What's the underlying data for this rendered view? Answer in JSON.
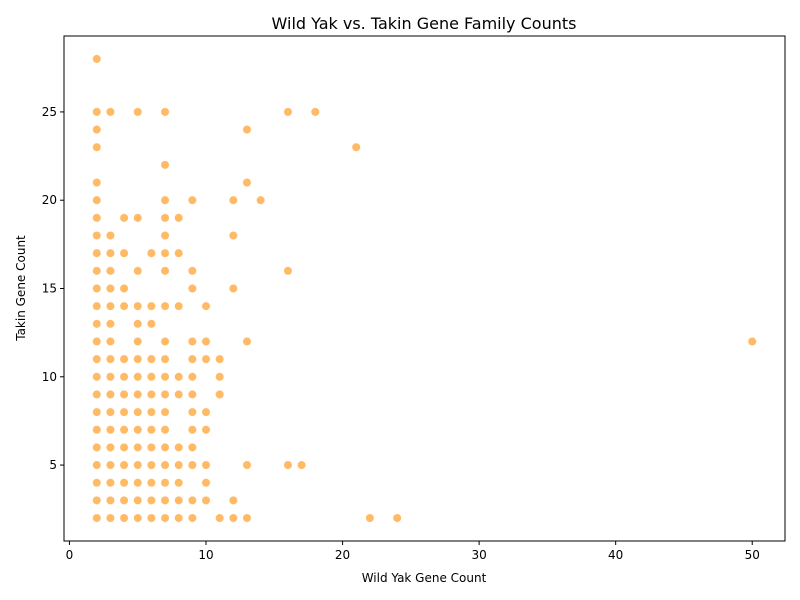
{
  "chart_data": {
    "type": "scatter",
    "title": "Wild Yak vs. Takin Gene Family Counts",
    "xlabel": "Wild Yak Gene Count",
    "ylabel": "Takin Gene Count",
    "xlim": [
      -0.4,
      52.4
    ],
    "ylim": [
      0.7,
      29.3
    ],
    "xticks": [
      0,
      10,
      20,
      30,
      40,
      50
    ],
    "yticks": [
      5,
      10,
      15,
      20,
      25
    ],
    "grid": false,
    "legend": "none",
    "point_color": "#ff8c00",
    "points": [
      [
        2,
        2
      ],
      [
        2,
        3
      ],
      [
        2,
        4
      ],
      [
        2,
        5
      ],
      [
        2,
        6
      ],
      [
        2,
        7
      ],
      [
        2,
        8
      ],
      [
        2,
        9
      ],
      [
        2,
        10
      ],
      [
        2,
        11
      ],
      [
        2,
        12
      ],
      [
        2,
        13
      ],
      [
        2,
        14
      ],
      [
        2,
        15
      ],
      [
        2,
        16
      ],
      [
        2,
        17
      ],
      [
        2,
        18
      ],
      [
        2,
        19
      ],
      [
        2,
        20
      ],
      [
        2,
        21
      ],
      [
        2,
        23
      ],
      [
        2,
        24
      ],
      [
        2,
        25
      ],
      [
        2,
        28
      ],
      [
        3,
        2
      ],
      [
        3,
        3
      ],
      [
        3,
        4
      ],
      [
        3,
        5
      ],
      [
        3,
        6
      ],
      [
        3,
        7
      ],
      [
        3,
        8
      ],
      [
        3,
        9
      ],
      [
        3,
        10
      ],
      [
        3,
        11
      ],
      [
        3,
        12
      ],
      [
        3,
        13
      ],
      [
        3,
        14
      ],
      [
        3,
        15
      ],
      [
        3,
        16
      ],
      [
        3,
        17
      ],
      [
        3,
        18
      ],
      [
        3,
        25
      ],
      [
        4,
        2
      ],
      [
        4,
        3
      ],
      [
        4,
        4
      ],
      [
        4,
        5
      ],
      [
        4,
        6
      ],
      [
        4,
        7
      ],
      [
        4,
        8
      ],
      [
        4,
        9
      ],
      [
        4,
        10
      ],
      [
        4,
        11
      ],
      [
        4,
        14
      ],
      [
        4,
        15
      ],
      [
        4,
        17
      ],
      [
        4,
        19
      ],
      [
        5,
        2
      ],
      [
        5,
        3
      ],
      [
        5,
        4
      ],
      [
        5,
        5
      ],
      [
        5,
        6
      ],
      [
        5,
        7
      ],
      [
        5,
        8
      ],
      [
        5,
        9
      ],
      [
        5,
        10
      ],
      [
        5,
        11
      ],
      [
        5,
        12
      ],
      [
        5,
        13
      ],
      [
        5,
        14
      ],
      [
        5,
        16
      ],
      [
        5,
        19
      ],
      [
        5,
        25
      ],
      [
        6,
        2
      ],
      [
        6,
        3
      ],
      [
        6,
        4
      ],
      [
        6,
        5
      ],
      [
        6,
        6
      ],
      [
        6,
        7
      ],
      [
        6,
        8
      ],
      [
        6,
        9
      ],
      [
        6,
        10
      ],
      [
        6,
        11
      ],
      [
        6,
        13
      ],
      [
        6,
        14
      ],
      [
        6,
        17
      ],
      [
        7,
        2
      ],
      [
        7,
        3
      ],
      [
        7,
        4
      ],
      [
        7,
        5
      ],
      [
        7,
        6
      ],
      [
        7,
        7
      ],
      [
        7,
        8
      ],
      [
        7,
        9
      ],
      [
        7,
        10
      ],
      [
        7,
        11
      ],
      [
        7,
        12
      ],
      [
        7,
        14
      ],
      [
        7,
        16
      ],
      [
        7,
        17
      ],
      [
        7,
        18
      ],
      [
        7,
        19
      ],
      [
        7,
        20
      ],
      [
        7,
        22
      ],
      [
        7,
        25
      ],
      [
        8,
        2
      ],
      [
        8,
        3
      ],
      [
        8,
        4
      ],
      [
        8,
        5
      ],
      [
        8,
        6
      ],
      [
        8,
        9
      ],
      [
        8,
        10
      ],
      [
        8,
        14
      ],
      [
        8,
        17
      ],
      [
        8,
        19
      ],
      [
        9,
        2
      ],
      [
        9,
        3
      ],
      [
        9,
        5
      ],
      [
        9,
        6
      ],
      [
        9,
        7
      ],
      [
        9,
        8
      ],
      [
        9,
        9
      ],
      [
        9,
        10
      ],
      [
        9,
        11
      ],
      [
        9,
        12
      ],
      [
        9,
        15
      ],
      [
        9,
        16
      ],
      [
        9,
        20
      ],
      [
        10,
        3
      ],
      [
        10,
        4
      ],
      [
        10,
        5
      ],
      [
        10,
        7
      ],
      [
        10,
        8
      ],
      [
        10,
        11
      ],
      [
        10,
        12
      ],
      [
        10,
        14
      ],
      [
        11,
        2
      ],
      [
        11,
        9
      ],
      [
        11,
        10
      ],
      [
        11,
        11
      ],
      [
        12,
        2
      ],
      [
        12,
        3
      ],
      [
        12,
        15
      ],
      [
        12,
        18
      ],
      [
        12,
        20
      ],
      [
        13,
        2
      ],
      [
        13,
        5
      ],
      [
        13,
        12
      ],
      [
        13,
        21
      ],
      [
        13,
        24
      ],
      [
        14,
        20
      ],
      [
        16,
        5
      ],
      [
        16,
        16
      ],
      [
        16,
        25
      ],
      [
        17,
        5
      ],
      [
        18,
        25
      ],
      [
        21,
        23
      ],
      [
        22,
        2
      ],
      [
        24,
        2
      ],
      [
        50,
        12
      ]
    ]
  }
}
